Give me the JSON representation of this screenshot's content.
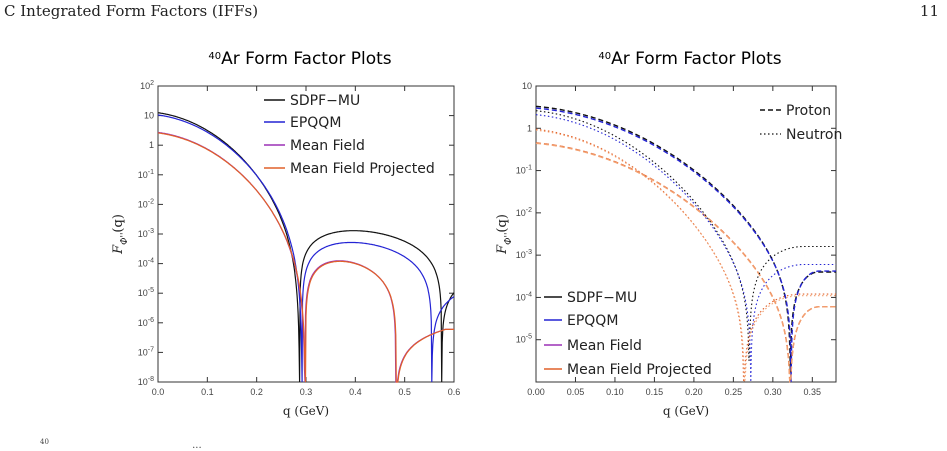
{
  "page": {
    "section": "C Integrated Form Factors (IFFs)",
    "page_number": "11",
    "caption_fragments": [
      "40",
      "..."
    ]
  },
  "colors": {
    "sdpf": "#111111",
    "epqqm": "#2424d4",
    "meanfield": "#9b30b5",
    "mfp": "#e0602a",
    "proton_pale": "#f3a070"
  },
  "chart_data": [
    {
      "type": "line",
      "title_sup": "40",
      "title": "Ar Form Factor Plots",
      "xlabel": "q (GeV)",
      "ylabel": "F",
      "ylabel_sub": "Φ''",
      "ylabel_tail": "(q)",
      "yscale": "log",
      "xlim": [
        0.0,
        0.6
      ],
      "ylim_exp": [
        -8,
        2
      ],
      "x_ticks": [
        "0.0",
        "0.1",
        "0.2",
        "0.3",
        "0.4",
        "0.5",
        "0.6"
      ],
      "y_ticks": [
        "10^-8",
        "10^-7",
        "10^-6",
        "10^-5",
        "10^-4",
        "10^-3",
        "10^-2",
        "10^-1",
        "1",
        "10",
        "10^2"
      ],
      "legend": [
        "SDPF−MU",
        "EPQQM",
        "Mean Field",
        "Mean Field Projected"
      ],
      "series": [
        {
          "name": "SDPF−MU",
          "style": "solid",
          "x0": 0.0,
          "a0": 12.5,
          "zeros": [
            0.287,
            0.575
          ],
          "lobe_peaks": [
            0.345,
            0.6
          ],
          "lobe_values": [
            0.0025,
            5.5e-05
          ]
        },
        {
          "name": "EPQQM",
          "style": "solid",
          "x0": 0.0,
          "a0": 10.5,
          "zeros": [
            0.292,
            0.555
          ],
          "lobe_peaks": [
            0.345,
            0.6
          ],
          "lobe_values": [
            0.001,
            2e-05
          ]
        },
        {
          "name": "Mean Field",
          "style": "solid",
          "x0": 0.0,
          "a0": 2.7,
          "zeros": [
            0.298,
            0.482
          ],
          "lobe_peaks": [
            0.345,
            0.565
          ],
          "lobe_values": [
            0.00024,
            6e-07
          ]
        },
        {
          "name": "Mean Field Projected",
          "style": "solid",
          "x0": 0.0,
          "a0": 2.6,
          "zeros": [
            0.299,
            0.483
          ],
          "lobe_peaks": [
            0.345,
            0.565
          ],
          "lobe_values": [
            0.00023,
            6e-07
          ]
        }
      ]
    },
    {
      "type": "line",
      "title_sup": "40",
      "title": "Ar Form Factor Plots",
      "xlabel": "q (GeV)",
      "ylabel": "F",
      "ylabel_sub": "Φ''",
      "ylabel_tail": "(q)",
      "yscale": "log",
      "xlim": [
        0.0,
        0.38
      ],
      "ylim_exp": [
        -6,
        1
      ],
      "x_ticks": [
        "0.00",
        "0.05",
        "0.10",
        "0.15",
        "0.20",
        "0.25",
        "0.30",
        "0.35"
      ],
      "y_ticks": [
        "10^-5",
        "10^-4",
        "10^-3",
        "10^-2",
        "10^-1",
        "1",
        "10"
      ],
      "legend_top": [
        "Proton",
        "Neutron"
      ],
      "legend": [
        "SDPF−MU",
        "EPQQM",
        "Mean Field",
        "Mean Field Projected"
      ],
      "series": [
        {
          "name": "SDPF−MU Proton",
          "style": "dashed",
          "color": "sdpf",
          "a0": 3.3,
          "zero": 0.322,
          "lobe": 0.0004
        },
        {
          "name": "EPQQM Proton",
          "style": "dashed",
          "color": "epqqm",
          "a0": 3.0,
          "zero": 0.323,
          "lobe": 0.00042
        },
        {
          "name": "Mean Field Proton",
          "style": "dashed",
          "color": "mfp",
          "a0": 0.45,
          "zero": 0.322,
          "lobe": 6e-05
        },
        {
          "name": "Mean Field Projected Proton",
          "style": "dashed",
          "color": "proton_pale",
          "a0": 0.44,
          "zero": 0.322,
          "lobe": 6e-05
        },
        {
          "name": "SDPF−MU Neutron",
          "style": "dotted",
          "color": "sdpf",
          "a0": 2.6,
          "zero": 0.27,
          "lobe": 0.0016
        },
        {
          "name": "EPQQM Neutron",
          "style": "dotted",
          "color": "epqqm",
          "a0": 2.1,
          "zero": 0.272,
          "lobe": 0.0006
        },
        {
          "name": "Mean Field Neutron",
          "style": "dotted",
          "color": "mfp",
          "a0": 0.95,
          "zero": 0.263,
          "lobe": 0.00012
        },
        {
          "name": "Mean Field Projected Neutron",
          "style": "dotted",
          "color": "proton_pale",
          "a0": 0.9,
          "zero": 0.264,
          "lobe": 0.00011
        }
      ]
    }
  ]
}
